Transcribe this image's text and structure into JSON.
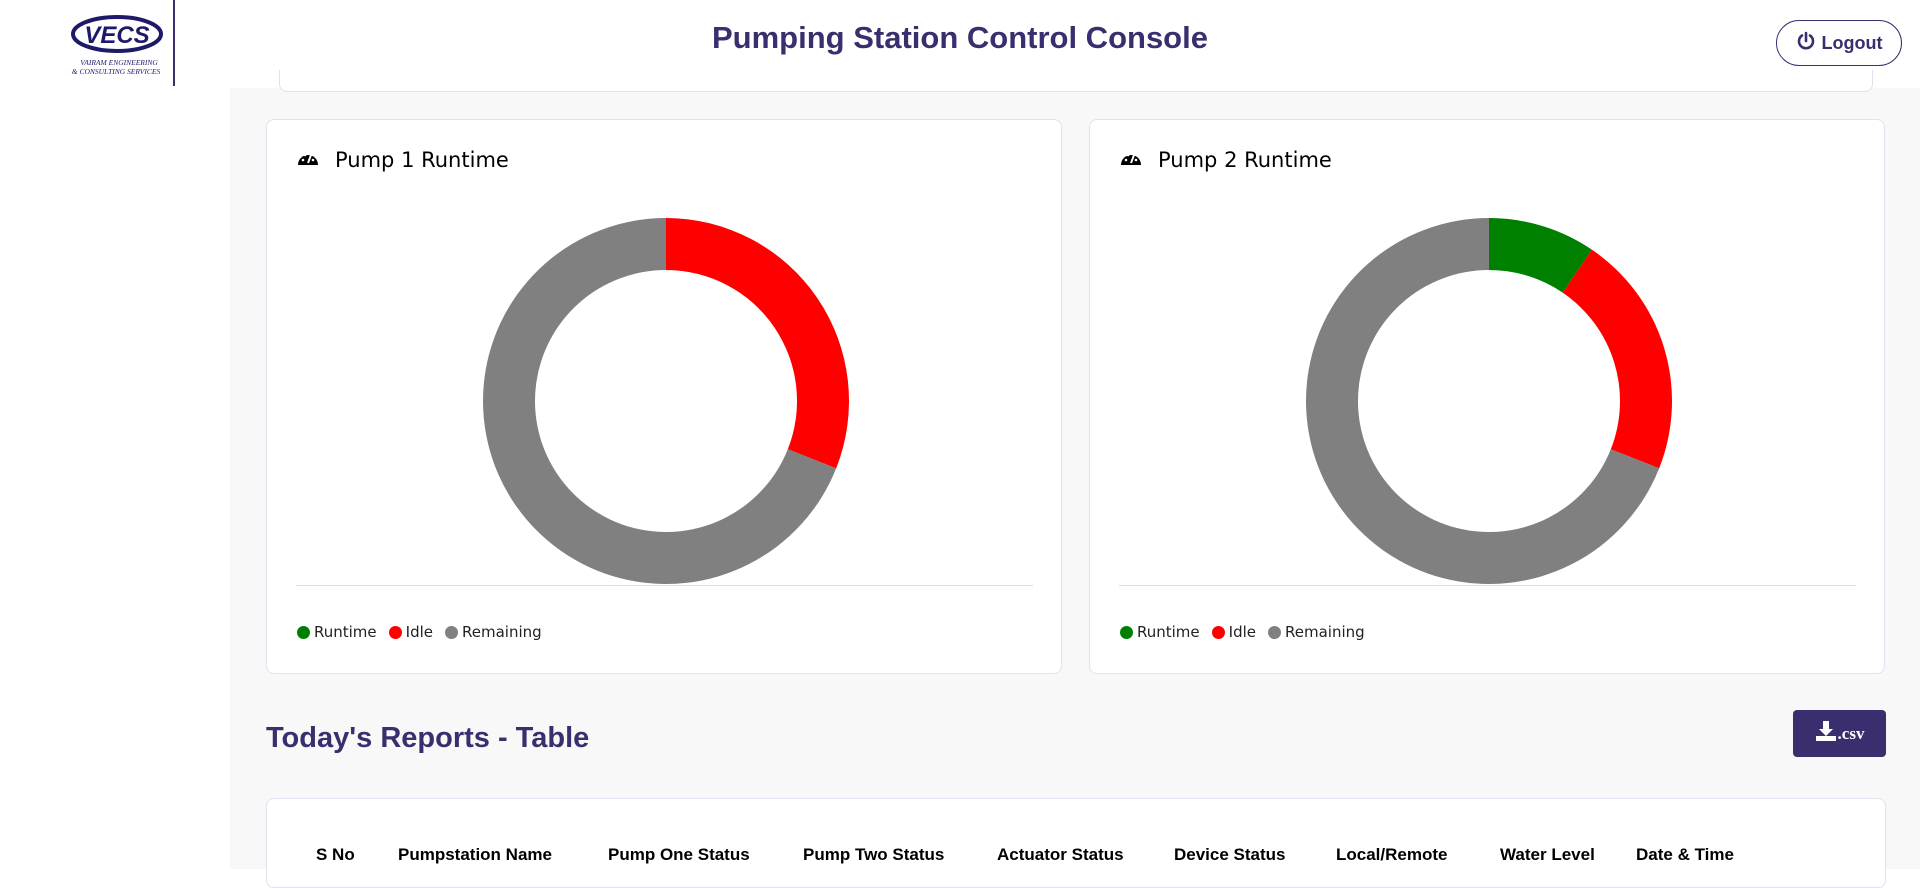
{
  "header": {
    "title": "Pumping Station Control Console",
    "logout_label": "Logout",
    "logo": {
      "text": "VECS",
      "line1": "VAIRAM ENGINEERING",
      "line2": "& CONSULTING SERVICES"
    }
  },
  "colors": {
    "brand": "#3a2e6e",
    "runtime": "#008000",
    "idle": "#ff0000",
    "remaining": "#808080"
  },
  "chart_data": [
    {
      "type": "pie",
      "title": "Pump 1 Runtime",
      "categories": [
        "Runtime",
        "Idle",
        "Remaining"
      ],
      "values": [
        0,
        31,
        69
      ],
      "colors": [
        "#008000",
        "#ff0000",
        "#808080"
      ],
      "legend": "bottom-left"
    },
    {
      "type": "pie",
      "title": "Pump 2 Runtime",
      "categories": [
        "Runtime",
        "Idle",
        "Remaining"
      ],
      "values": [
        9.5,
        21.5,
        69
      ],
      "colors": [
        "#008000",
        "#ff0000",
        "#808080"
      ],
      "legend": "bottom-left"
    }
  ],
  "reports": {
    "title": "Today's Reports - Table",
    "csv_label": ".csv",
    "columns": [
      "S No",
      "Pumpstation Name",
      "Pump One Status",
      "Pump Two Status",
      "Actuator Status",
      "Device Status",
      "Local/Remote",
      "Water Level",
      "Date & Time"
    ]
  }
}
